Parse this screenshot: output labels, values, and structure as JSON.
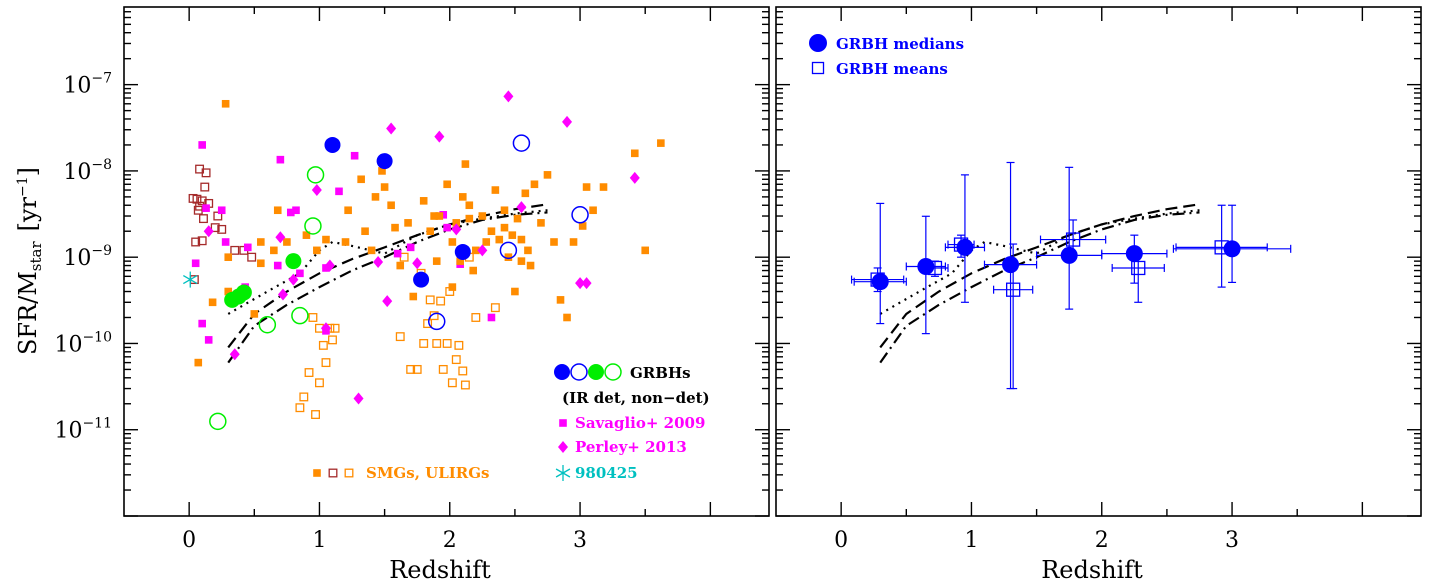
{
  "chart_data": [
    {
      "type": "scatter",
      "xlabel": "Redshift",
      "ylabel": "SFR/M",
      "ylabel_sub": "star",
      "ylabel_unit": "[yr",
      "ylabel_unit_exp": "−1",
      "ylabel_unit_close": "]",
      "xlim": [
        -0.5,
        4.45
      ],
      "ylim_log10": [
        -12,
        -6.1
      ],
      "y_scale": "log",
      "x_ticks": [
        "0",
        "1",
        "2",
        "3"
      ],
      "y_ticks": [
        {
          "base": "10",
          "exp": "−11"
        },
        {
          "base": "10",
          "exp": "−10"
        },
        {
          "base": "10",
          "exp": "−9"
        },
        {
          "base": "10",
          "exp": "−8"
        },
        {
          "base": "10",
          "exp": "−7"
        }
      ],
      "legend": [
        {
          "text": "GRBHs",
          "color": "#000000"
        },
        {
          "text": "(IR det, non−det)",
          "color": "#000000"
        },
        {
          "text": "Savaglio+ 2009",
          "color": "#ff00ff"
        },
        {
          "text": "Perley+ 2013",
          "color": "#ff00ff"
        },
        {
          "text": "980425",
          "color": "#00c0c0"
        },
        {
          "text": "SMGs, ULIRGs",
          "color": "#ff8c00"
        }
      ],
      "colors": {
        "blue": "#0000ff",
        "green": "#00ee00",
        "magenta": "#ff00ff",
        "orange": "#ff8c00",
        "darkred": "#a52a2a",
        "cyan": "#00c0c0"
      },
      "series": [
        {
          "name": "GRBHs",
          "marker": "filled-circle",
          "color": "#0000ff",
          "x": [
            1.1,
            1.5,
            1.78,
            2.1
          ],
          "y": [
            2e-08,
            1.3e-08,
            5.5e-10,
            1.15e-09
          ]
        },
        {
          "marker": "open-circle",
          "color": "#0000ff",
          "x": [
            2.55,
            3.0,
            1.9,
            2.45
          ],
          "y": [
            2.1e-08,
            3.1e-09,
            1.8e-10,
            1.2e-09
          ]
        },
        {
          "marker": "filled-circle",
          "color": "#00ee00",
          "x": [
            0.33,
            0.38,
            0.42,
            0.8
          ],
          "y": [
            3.2e-10,
            3.5e-10,
            3.9e-10,
            9e-10
          ]
        },
        {
          "marker": "open-circle",
          "color": "#00ee00",
          "x": [
            0.97,
            0.95,
            0.85,
            0.6,
            0.22
          ],
          "y": [
            9e-09,
            2.3e-09,
            2.1e-10,
            1.65e-10,
            1.25e-11
          ]
        },
        {
          "name": "Savaglio+ 2009",
          "marker": "filled-square",
          "color": "#ff00ff",
          "x": [
            0.1,
            0.25,
            0.28,
            0.05,
            0.15,
            0.1,
            0.13,
            0.45,
            0.7,
            0.68,
            0.82,
            0.85,
            0.78,
            1.05,
            1.15,
            1.05,
            1.27,
            1.6,
            1.7,
            1.95,
            2.08,
            2.32,
            1.98,
            0.43
          ],
          "y": [
            2e-08,
            3.5e-09,
            1.5e-09,
            8.5e-10,
            1.1e-10,
            1.7e-10,
            3.7e-09,
            1.3e-09,
            1.35e-08,
            8e-10,
            3.5e-09,
            6.5e-10,
            3.3e-09,
            1.4e-10,
            5.8e-09,
            7.5e-10,
            1.5e-08,
            1.1e-09,
            1.3e-09,
            3.1e-09,
            8.3e-10,
            2e-10,
            2.2e-09,
            4.5e-10
          ]
        },
        {
          "name": "Perley+ 2013",
          "marker": "filled-diamond",
          "color": "#ff00ff",
          "x": [
            0.35,
            0.7,
            0.72,
            0.8,
            0.98,
            1.05,
            1.3,
            1.45,
            1.52,
            1.55,
            1.75,
            1.92,
            2.05,
            2.25,
            2.45,
            2.55,
            2.9,
            3.0,
            3.05,
            3.42,
            0.15,
            1.08
          ],
          "y": [
            7.5e-11,
            1.7e-09,
            3.7e-10,
            5.5e-10,
            6e-09,
            1.5e-10,
            2.3e-11,
            8.8e-10,
            3.1e-10,
            3.1e-08,
            8.5e-10,
            2.5e-08,
            2.1e-09,
            1.2e-09,
            7.3e-08,
            3.8e-09,
            3.7e-08,
            5e-10,
            5e-10,
            8.3e-09,
            2e-09,
            8e-10
          ]
        },
        {
          "name": "980425",
          "marker": "asterisk",
          "color": "#00c0c0",
          "x": [
            0.0085
          ],
          "y": [
            5.5e-10
          ]
        },
        {
          "name": "SMGs, ULIRGs",
          "marker": "filled-square",
          "color": "#ff8c00",
          "x": [
            0.28,
            0.3,
            0.3,
            0.18,
            0.07,
            0.5,
            0.55,
            0.55,
            0.65,
            0.68,
            0.75,
            0.9,
            0.98,
            1.05,
            1.2,
            1.22,
            1.32,
            1.35,
            1.4,
            1.43,
            1.48,
            1.5,
            1.55,
            1.58,
            1.62,
            1.68,
            1.72,
            1.8,
            1.85,
            1.9,
            1.92,
            1.98,
            2.02,
            2.05,
            2.08,
            2.1,
            2.12,
            2.15,
            2.18,
            2.2,
            2.25,
            2.28,
            2.32,
            2.35,
            2.38,
            2.42,
            2.45,
            2.48,
            2.5,
            2.52,
            2.55,
            2.58,
            2.6,
            2.65,
            2.7,
            2.75,
            2.8,
            2.85,
            2.9,
            2.95,
            3.05,
            3.1,
            3.18,
            3.42,
            3.5,
            3.62,
            3.02,
            2.62,
            2.42,
            2.02,
            1.88,
            2.15,
            2.55
          ],
          "y": [
            6e-08,
            1e-09,
            4e-10,
            3e-10,
            6e-11,
            2.2e-10,
            1.5e-09,
            8.5e-10,
            1.2e-09,
            3.5e-09,
            1.5e-09,
            1.8e-09,
            1.2e-09,
            1.6e-09,
            1.5e-09,
            3.5e-09,
            8e-09,
            2e-09,
            1.2e-09,
            5e-09,
            1e-08,
            6.5e-09,
            4e-09,
            2.2e-09,
            8e-10,
            2.5e-09,
            3.5e-10,
            4.5e-09,
            2e-09,
            9e-10,
            3e-09,
            7e-09,
            4.5e-10,
            2.5e-09,
            9e-10,
            5e-09,
            1.2e-08,
            2.8e-09,
            7e-10,
            1.2e-09,
            3e-09,
            1.5e-09,
            2e-09,
            6e-09,
            1.6e-09,
            3.5e-09,
            1e-09,
            1.8e-09,
            4e-10,
            2.8e-09,
            9e-10,
            5.5e-09,
            1.2e-09,
            7e-09,
            2.5e-09,
            9e-09,
            1.5e-09,
            3.2e-10,
            2e-10,
            1.5e-09,
            6.5e-09,
            3.5e-09,
            6.5e-09,
            1.6e-08,
            1.2e-09,
            2.1e-08,
            2.3e-09,
            8e-10,
            2.2e-09,
            1.5e-09,
            3e-09,
            4e-09,
            1.6e-09
          ]
        },
        {
          "marker": "open-square",
          "color": "#ff8c00",
          "x": [
            0.85,
            0.88,
            0.92,
            0.97,
            1.0,
            1.05,
            1.08,
            1.1,
            0.95,
            1.0,
            1.03,
            1.12,
            1.62,
            1.7,
            1.75,
            1.8,
            1.83,
            1.85,
            1.88,
            1.9,
            1.93,
            1.95,
            1.98,
            2.0,
            2.02,
            2.05,
            2.07,
            2.1,
            2.12,
            2.2,
            2.35,
            2.15,
            1.78,
            1.65
          ],
          "y": [
            1.8e-11,
            2.4e-11,
            4.6e-11,
            1.5e-11,
            3.5e-11,
            6e-11,
            1.5e-10,
            1.1e-10,
            2e-10,
            1.5e-10,
            9.5e-11,
            1.5e-10,
            1.2e-10,
            5e-11,
            5e-11,
            1e-10,
            1.7e-10,
            3.2e-10,
            2.1e-10,
            1e-10,
            3.1e-10,
            5e-11,
            1e-10,
            4e-10,
            3.5e-11,
            6.5e-11,
            9.5e-11,
            4.8e-11,
            3.3e-11,
            2e-10,
            2.6e-10,
            1e-09,
            6.5e-10,
            1e-09
          ]
        },
        {
          "marker": "open-square",
          "color": "#a52a2a",
          "x": [
            0.03,
            0.06,
            0.08,
            0.1,
            0.12,
            0.13,
            0.05,
            0.08,
            0.1,
            0.15,
            0.2,
            0.22,
            0.42,
            0.48,
            0.04,
            0.07,
            0.11,
            0.25,
            0.35
          ],
          "y": [
            4.8e-09,
            4.7e-09,
            3.9e-09,
            4.5e-09,
            6.5e-09,
            9.5e-09,
            1.5e-09,
            1.05e-08,
            1.55e-09,
            4.2e-09,
            2.2e-09,
            3e-09,
            1.2e-09,
            1e-09,
            5.5e-10,
            3.5e-09,
            2.8e-09,
            2.1e-09,
            1.2e-09
          ]
        }
      ],
      "curves": [
        {
          "style": "dotted",
          "x": [
            0.3,
            0.6,
            0.85,
            1.0,
            1.1,
            1.25,
            1.5,
            1.75,
            2.0,
            2.25,
            2.5,
            2.75
          ],
          "y": [
            2.2e-10,
            4e-10,
            6.5e-10,
            1.2e-09,
            1.5e-09,
            1.35e-09,
            1.1e-09,
            1.8e-09,
            2.4e-09,
            2.8e-09,
            3.2e-09,
            3.5e-09
          ]
        },
        {
          "style": "dashed",
          "x": [
            0.3,
            0.5,
            0.75,
            1.0,
            1.25,
            1.5,
            1.75,
            2.0,
            2.25,
            2.5,
            2.75
          ],
          "y": [
            9e-11,
            2.2e-10,
            4e-10,
            6.5e-10,
            9.5e-10,
            1.3e-09,
            1.8e-09,
            2.4e-09,
            3e-09,
            3.6e-09,
            4.1e-09
          ]
        },
        {
          "style": "dashdot",
          "x": [
            0.3,
            0.5,
            0.75,
            1.0,
            1.25,
            1.5,
            1.75,
            2.0,
            2.25,
            2.5,
            2.75
          ],
          "y": [
            6e-11,
            1.6e-10,
            2.8e-10,
            4.5e-10,
            7e-10,
            1e-09,
            1.5e-09,
            2.1e-09,
            2.7e-09,
            3.1e-09,
            3.3e-09
          ]
        }
      ]
    },
    {
      "type": "scatter",
      "xlabel": "Redshift",
      "xlim": [
        -0.5,
        4.45
      ],
      "ylim_log10": [
        -12,
        -6.1
      ],
      "y_scale": "log",
      "x_ticks": [
        "0",
        "1",
        "2",
        "3"
      ],
      "legend": [
        {
          "text": "GRBH medians",
          "marker": "filled-circle",
          "color": "#0000ff"
        },
        {
          "text": "GRBH means",
          "marker": "open-square",
          "color": "#0000ff"
        }
      ],
      "series": [
        {
          "name": "GRBH medians",
          "marker": "filled-circle",
          "color": "#0000ff",
          "x": [
            0.3,
            0.65,
            0.95,
            1.3,
            1.75,
            2.25,
            3.0
          ],
          "y": [
            5.2e-10,
            7.8e-10,
            1.3e-09,
            8.2e-10,
            1.05e-09,
            1.1e-09,
            1.25e-09
          ],
          "xerr_low": [
            0.2,
            0.15,
            0.15,
            0.2,
            0.25,
            0.25,
            0.45
          ],
          "xerr_high": [
            0.2,
            0.15,
            0.15,
            0.2,
            0.25,
            0.25,
            0.45
          ],
          "yerr_low": [
            3.5e-10,
            6.5e-10,
            1e-09,
            7.9e-10,
            8e-10,
            6e-10,
            7.4e-10
          ],
          "yerr_high": [
            3.68e-09,
            2.2e-09,
            7.7e-09,
            1.17e-08,
            9.95e-09,
            7e-10,
            2.75e-09
          ]
        },
        {
          "name": "GRBH means",
          "marker": "open-square",
          "color": "#0000ff",
          "x": [
            0.28,
            0.72,
            0.92,
            1.32,
            1.78,
            2.28,
            2.92
          ],
          "y": [
            5.5e-10,
            7.5e-10,
            1.4e-09,
            4.2e-10,
            1.6e-09,
            7.5e-10,
            1.3e-09
          ],
          "xerr_low": [
            0.2,
            0.1,
            0.1,
            0.15,
            0.25,
            0.2,
            0.35
          ],
          "xerr_high": [
            0.2,
            0.1,
            0.1,
            0.15,
            0.25,
            0.2,
            0.35
          ],
          "yerr_low": [
            1.5e-10,
            1.5e-10,
            4e-10,
            3.9e-10,
            6e-10,
            4.5e-10,
            8.5e-10
          ],
          "yerr_high": [
            2e-10,
            1.5e-10,
            4e-10,
            1e-09,
            1.1e-09,
            3e-10,
            2.7e-09
          ]
        }
      ],
      "curves": [
        {
          "style": "dotted",
          "x": [
            0.3,
            0.6,
            0.85,
            1.0,
            1.1,
            1.25,
            1.5,
            1.75,
            2.0,
            2.25,
            2.5,
            2.75
          ],
          "y": [
            2.2e-10,
            4e-10,
            6.5e-10,
            1.2e-09,
            1.5e-09,
            1.35e-09,
            1.1e-09,
            1.8e-09,
            2.4e-09,
            2.8e-09,
            3.2e-09,
            3.5e-09
          ]
        },
        {
          "style": "dashed",
          "x": [
            0.3,
            0.5,
            0.75,
            1.0,
            1.25,
            1.5,
            1.75,
            2.0,
            2.25,
            2.5,
            2.75
          ],
          "y": [
            9e-11,
            2.2e-10,
            4e-10,
            6.5e-10,
            9.5e-10,
            1.3e-09,
            1.8e-09,
            2.4e-09,
            3e-09,
            3.6e-09,
            4.1e-09
          ]
        },
        {
          "style": "dashdot",
          "x": [
            0.3,
            0.5,
            0.75,
            1.0,
            1.25,
            1.5,
            1.75,
            2.0,
            2.25,
            2.5,
            2.75
          ],
          "y": [
            6e-11,
            1.6e-10,
            2.8e-10,
            4.5e-10,
            7e-10,
            1e-09,
            1.5e-09,
            2.1e-09,
            2.7e-09,
            3.1e-09,
            3.3e-09
          ]
        }
      ]
    }
  ]
}
